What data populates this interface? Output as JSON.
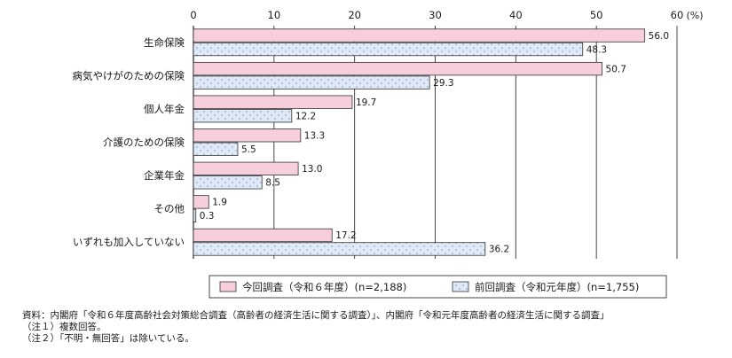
{
  "chart_data": {
    "type": "bar",
    "orientation": "horizontal",
    "unit_label": "(%)",
    "xlim": [
      0,
      60
    ],
    "x_ticks": [
      0,
      10,
      20,
      30,
      40,
      50,
      60
    ],
    "grid": true,
    "categories": [
      "生命保険",
      "病気やけがのための保険",
      "個人年金",
      "介護のための保険",
      "企業年金",
      "その他",
      "いずれも加入していない"
    ],
    "series": [
      {
        "name": "今回調査（令和６年度）(n=2,188)",
        "values": [
          56.0,
          50.7,
          19.7,
          13.3,
          13.0,
          1.9,
          17.2
        ],
        "value_labels": [
          "56.0",
          "50.7",
          "19.7",
          "13.3",
          "13.0",
          "1.9",
          "17.2"
        ],
        "fill": "#f7cfdc",
        "pattern": "none"
      },
      {
        "name": "前回調査（令和元年度）(n=1,755)",
        "values": [
          48.3,
          29.3,
          12.2,
          5.5,
          8.5,
          0.3,
          36.2
        ],
        "value_labels": [
          "48.3",
          "29.3",
          "12.2",
          "5.5",
          "8.5",
          "0.3",
          "36.2"
        ],
        "fill": "#dfe9f7",
        "pattern": "dots"
      }
    ],
    "legend_position": "bottom-right"
  },
  "notes": [
    "資料：内閣府「令和６年度高齢社会対策総合調査（高齢者の経済生活に関する調査）」、内閣府「令和元年度高齢者の経済生活に関する調査」",
    "（注１）複数回答。",
    "（注２）「不明・無回答」は除いている。"
  ]
}
